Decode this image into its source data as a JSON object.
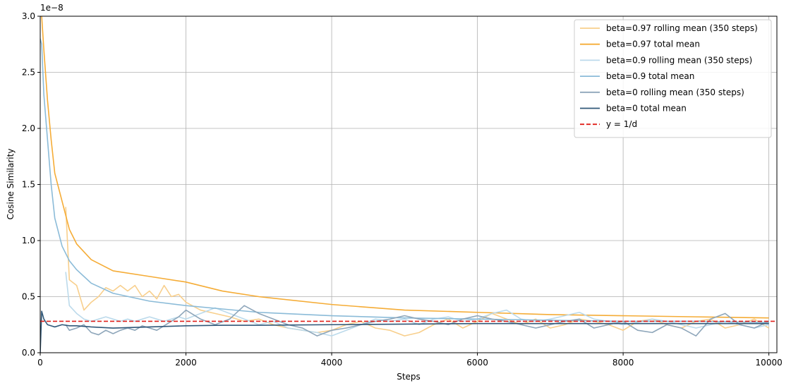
{
  "chart_data": {
    "type": "line",
    "xlabel": "Steps",
    "ylabel": "Cosine Similarity",
    "y_offset_label": "1e−8",
    "xlim": [
      0,
      10110
    ],
    "ylim": [
      0,
      3
    ],
    "xticks": [
      0,
      2000,
      4000,
      6000,
      8000,
      10000
    ],
    "yticks": [
      {
        "value": 0,
        "label": "0.0"
      },
      0.5,
      {
        "value": 1,
        "label": "1.0"
      },
      1.5,
      {
        "value": 2,
        "label": "2.0"
      },
      2.5,
      {
        "value": 3,
        "label": "3.0"
      }
    ],
    "grid": true,
    "legend": "upper right",
    "series": [
      {
        "name": "beta=0.97 rolling mean (350 steps)",
        "color": "#f8cf8c",
        "x": [
          350,
          400,
          500,
          600,
          700,
          800,
          900,
          1000,
          1100,
          1200,
          1300,
          1400,
          1500,
          1600,
          1700,
          1800,
          1900,
          2000,
          2200,
          2400,
          2600,
          2800,
          3000,
          3200,
          3400,
          3600,
          3800,
          4000,
          4200,
          4400,
          4600,
          4800,
          5000,
          5200,
          5400,
          5600,
          5800,
          6000,
          6200,
          6400,
          6600,
          6800,
          7000,
          7200,
          7400,
          7600,
          7800,
          8000,
          8200,
          8400,
          8600,
          8800,
          9000,
          9200,
          9400,
          9600,
          9800,
          10000
        ],
        "values": [
          1.3,
          0.65,
          0.6,
          0.38,
          0.45,
          0.5,
          0.58,
          0.55,
          0.6,
          0.55,
          0.6,
          0.5,
          0.55,
          0.48,
          0.6,
          0.5,
          0.52,
          0.45,
          0.38,
          0.35,
          0.32,
          0.28,
          0.3,
          0.25,
          0.22,
          0.2,
          0.18,
          0.2,
          0.25,
          0.28,
          0.22,
          0.2,
          0.15,
          0.18,
          0.25,
          0.3,
          0.22,
          0.28,
          0.35,
          0.3,
          0.25,
          0.3,
          0.22,
          0.25,
          0.3,
          0.28,
          0.25,
          0.2,
          0.28,
          0.3,
          0.25,
          0.22,
          0.28,
          0.3,
          0.22,
          0.25,
          0.3,
          0.22
        ]
      },
      {
        "name": "beta=0.97 total mean",
        "color": "#f5ac36",
        "x": [
          0,
          20,
          50,
          100,
          150,
          200,
          300,
          400,
          500,
          700,
          1000,
          1500,
          2000,
          2500,
          3000,
          4000,
          5000,
          6000,
          7000,
          8000,
          9000,
          10000
        ],
        "values": [
          3.0,
          3.0,
          2.7,
          2.25,
          1.9,
          1.6,
          1.35,
          1.1,
          0.97,
          0.83,
          0.73,
          0.68,
          0.63,
          0.55,
          0.5,
          0.43,
          0.38,
          0.36,
          0.34,
          0.33,
          0.32,
          0.31
        ]
      },
      {
        "name": "beta=0.9 rolling mean (350 steps)",
        "color": "#bcdaeb",
        "x": [
          350,
          400,
          500,
          600,
          700,
          800,
          900,
          1000,
          1100,
          1200,
          1300,
          1400,
          1500,
          1600,
          1700,
          1800,
          1900,
          2000,
          2200,
          2400,
          2600,
          2800,
          3000,
          3200,
          3400,
          3600,
          3800,
          4000,
          4200,
          4400,
          4600,
          4800,
          5000,
          5200,
          5400,
          5600,
          5800,
          6000,
          6200,
          6400,
          6600,
          6800,
          7000,
          7200,
          7400,
          7600,
          7800,
          8000,
          8200,
          8400,
          8600,
          8800,
          9000,
          9200,
          9400,
          9600,
          9800,
          10000
        ],
        "values": [
          0.72,
          0.42,
          0.35,
          0.3,
          0.28,
          0.3,
          0.32,
          0.3,
          0.28,
          0.3,
          0.28,
          0.3,
          0.32,
          0.3,
          0.28,
          0.3,
          0.32,
          0.3,
          0.35,
          0.4,
          0.35,
          0.3,
          0.25,
          0.28,
          0.22,
          0.2,
          0.18,
          0.15,
          0.2,
          0.25,
          0.3,
          0.28,
          0.3,
          0.25,
          0.3,
          0.32,
          0.28,
          0.3,
          0.35,
          0.38,
          0.3,
          0.28,
          0.3,
          0.33,
          0.36,
          0.3,
          0.28,
          0.25,
          0.27,
          0.3,
          0.28,
          0.25,
          0.22,
          0.25,
          0.28,
          0.25,
          0.22,
          0.25
        ]
      },
      {
        "name": "beta=0.9 total mean",
        "color": "#8bbbd8",
        "x": [
          0,
          20,
          50,
          100,
          150,
          200,
          300,
          400,
          500,
          700,
          1000,
          1500,
          2000,
          2500,
          3000,
          4000,
          5000,
          6000,
          7000,
          8000,
          9000,
          10000
        ],
        "values": [
          2.8,
          2.75,
          2.3,
          1.9,
          1.5,
          1.2,
          0.95,
          0.82,
          0.74,
          0.62,
          0.53,
          0.46,
          0.42,
          0.39,
          0.36,
          0.33,
          0.31,
          0.3,
          0.29,
          0.28,
          0.28,
          0.27
        ]
      },
      {
        "name": "beta=0 rolling mean (350 steps)",
        "color": "#8ea6ba",
        "x": [
          350,
          400,
          500,
          600,
          700,
          800,
          900,
          1000,
          1100,
          1200,
          1300,
          1400,
          1500,
          1600,
          1700,
          1800,
          1900,
          2000,
          2200,
          2400,
          2600,
          2800,
          3000,
          3200,
          3400,
          3600,
          3800,
          4000,
          4200,
          4400,
          4600,
          4800,
          5000,
          5200,
          5400,
          5600,
          5800,
          6000,
          6200,
          6400,
          6600,
          6800,
          7000,
          7200,
          7400,
          7600,
          7800,
          8000,
          8200,
          8400,
          8600,
          8800,
          9000,
          9200,
          9400,
          9600,
          9800,
          10000
        ],
        "values": [
          0.25,
          0.2,
          0.22,
          0.25,
          0.18,
          0.16,
          0.2,
          0.17,
          0.2,
          0.22,
          0.2,
          0.24,
          0.22,
          0.2,
          0.24,
          0.28,
          0.32,
          0.38,
          0.3,
          0.25,
          0.3,
          0.42,
          0.35,
          0.3,
          0.25,
          0.22,
          0.15,
          0.2,
          0.22,
          0.25,
          0.28,
          0.3,
          0.33,
          0.3,
          0.28,
          0.25,
          0.3,
          0.33,
          0.3,
          0.28,
          0.25,
          0.22,
          0.25,
          0.28,
          0.3,
          0.22,
          0.25,
          0.28,
          0.2,
          0.18,
          0.25,
          0.22,
          0.15,
          0.3,
          0.35,
          0.25,
          0.22,
          0.28
        ]
      },
      {
        "name": "beta=0 total mean",
        "color": "#305879",
        "x": [
          0,
          20,
          50,
          100,
          150,
          200,
          300,
          400,
          500,
          700,
          1000,
          1500,
          2000,
          2500,
          3000,
          4000,
          5000,
          6000,
          7000,
          8000,
          9000,
          10000
        ],
        "values": [
          0,
          0.37,
          0.3,
          0.25,
          0.24,
          0.23,
          0.25,
          0.24,
          0.24,
          0.23,
          0.22,
          0.23,
          0.24,
          0.245,
          0.245,
          0.25,
          0.255,
          0.26,
          0.26,
          0.26,
          0.26,
          0.26
        ]
      }
    ],
    "reference_line": {
      "name": "y = 1/d",
      "color": "#e0201b",
      "value": 0.28
    }
  }
}
